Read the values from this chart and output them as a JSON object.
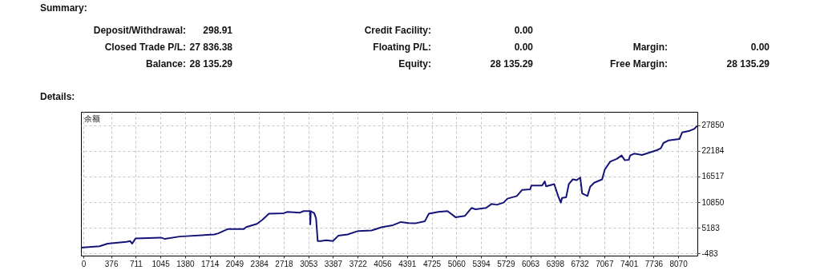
{
  "chart_data": [
    {
      "type": "other",
      "title": "Summary:",
      "annotations": [
        "Deposit/Withdrawal:",
        "298.91",
        "Credit Facility:",
        "0.00",
        "Closed Trade P/L:",
        "27 836.38",
        "Floating P/L:",
        "0.00",
        "Margin:",
        "0.00",
        "Balance:",
        "28 135.29",
        "Equity:",
        "28 135.29",
        "Free Margin:",
        "28 135.29"
      ]
    },
    {
      "type": "line",
      "title": "Details:",
      "annotations": [
        "余额"
      ],
      "x": [
        -33,
        220,
        329,
        582,
        636,
        662,
        709,
        1052,
        1106,
        1305,
        1776,
        1830,
        1956,
        2173,
        2210,
        2354,
        2427,
        2517,
        2716,
        2770,
        2933,
        2987,
        3075,
        3079,
        3085,
        3132,
        3157,
        3179,
        3222,
        3295,
        3385,
        3458,
        3585,
        3729,
        3910,
        4054,
        4199,
        4307,
        4415,
        4500,
        4633,
        4687,
        4814,
        4940,
        5049,
        5177,
        5266,
        5320,
        5464,
        5537,
        5610,
        5700,
        5754,
        5881,
        5953,
        6062,
        6079,
        6224,
        6260,
        6278,
        6388,
        6441,
        6477,
        6495,
        6549,
        6586,
        6640,
        6694,
        6741,
        6767,
        6839,
        6876,
        6930,
        7038,
        7074,
        7147,
        7237,
        7302,
        7346,
        7400,
        7418,
        7472,
        7580,
        7780,
        7834,
        7870,
        7942,
        8087,
        8123,
        8213,
        8286,
        8330
      ],
      "series": [
        {
          "color": "#141478",
          "values": [
            800,
            1100,
            1675,
            2080,
            2250,
            1675,
            2850,
            3025,
            2730,
            3250,
            3727,
            3960,
            4885,
            4885,
            5350,
            6050,
            6930,
            8290,
            8400,
            8690,
            8500,
            8870,
            8870,
            5940,
            8870,
            8400,
            7230,
            2250,
            2250,
            2420,
            2250,
            3430,
            3720,
            4480,
            4600,
            5350,
            5760,
            6460,
            6220,
            6160,
            6640,
            8290,
            8690,
            8870,
            7520,
            7820,
            9570,
            9280,
            9570,
            10440,
            10260,
            10740,
            11620,
            12200,
            13550,
            13690,
            14530,
            14530,
            15410,
            14350,
            14830,
            12200,
            10740,
            11800,
            11910,
            14830,
            15880,
            15700,
            16280,
            12780,
            12200,
            14250,
            15130,
            15880,
            18040,
            19790,
            20390,
            21140,
            20090,
            20210,
            21140,
            21550,
            21260,
            22320,
            22740,
            23900,
            24480,
            24770,
            26230,
            26530,
            27000,
            27700
          ]
        }
      ],
      "xlim": [
        -33,
        8330
      ],
      "ylim": [
        -960,
        30780
      ],
      "xticks": [
        0,
        376,
        711,
        1045,
        1380,
        1714,
        2049,
        2384,
        2718,
        3053,
        3387,
        3722,
        4056,
        4391,
        4725,
        5060,
        5394,
        5729,
        6063,
        6398,
        6732,
        7067,
        7401,
        7736,
        8070
      ],
      "yticks": [
        -483,
        5183,
        10850,
        16517,
        22184,
        27850
      ],
      "grid": true
    }
  ]
}
